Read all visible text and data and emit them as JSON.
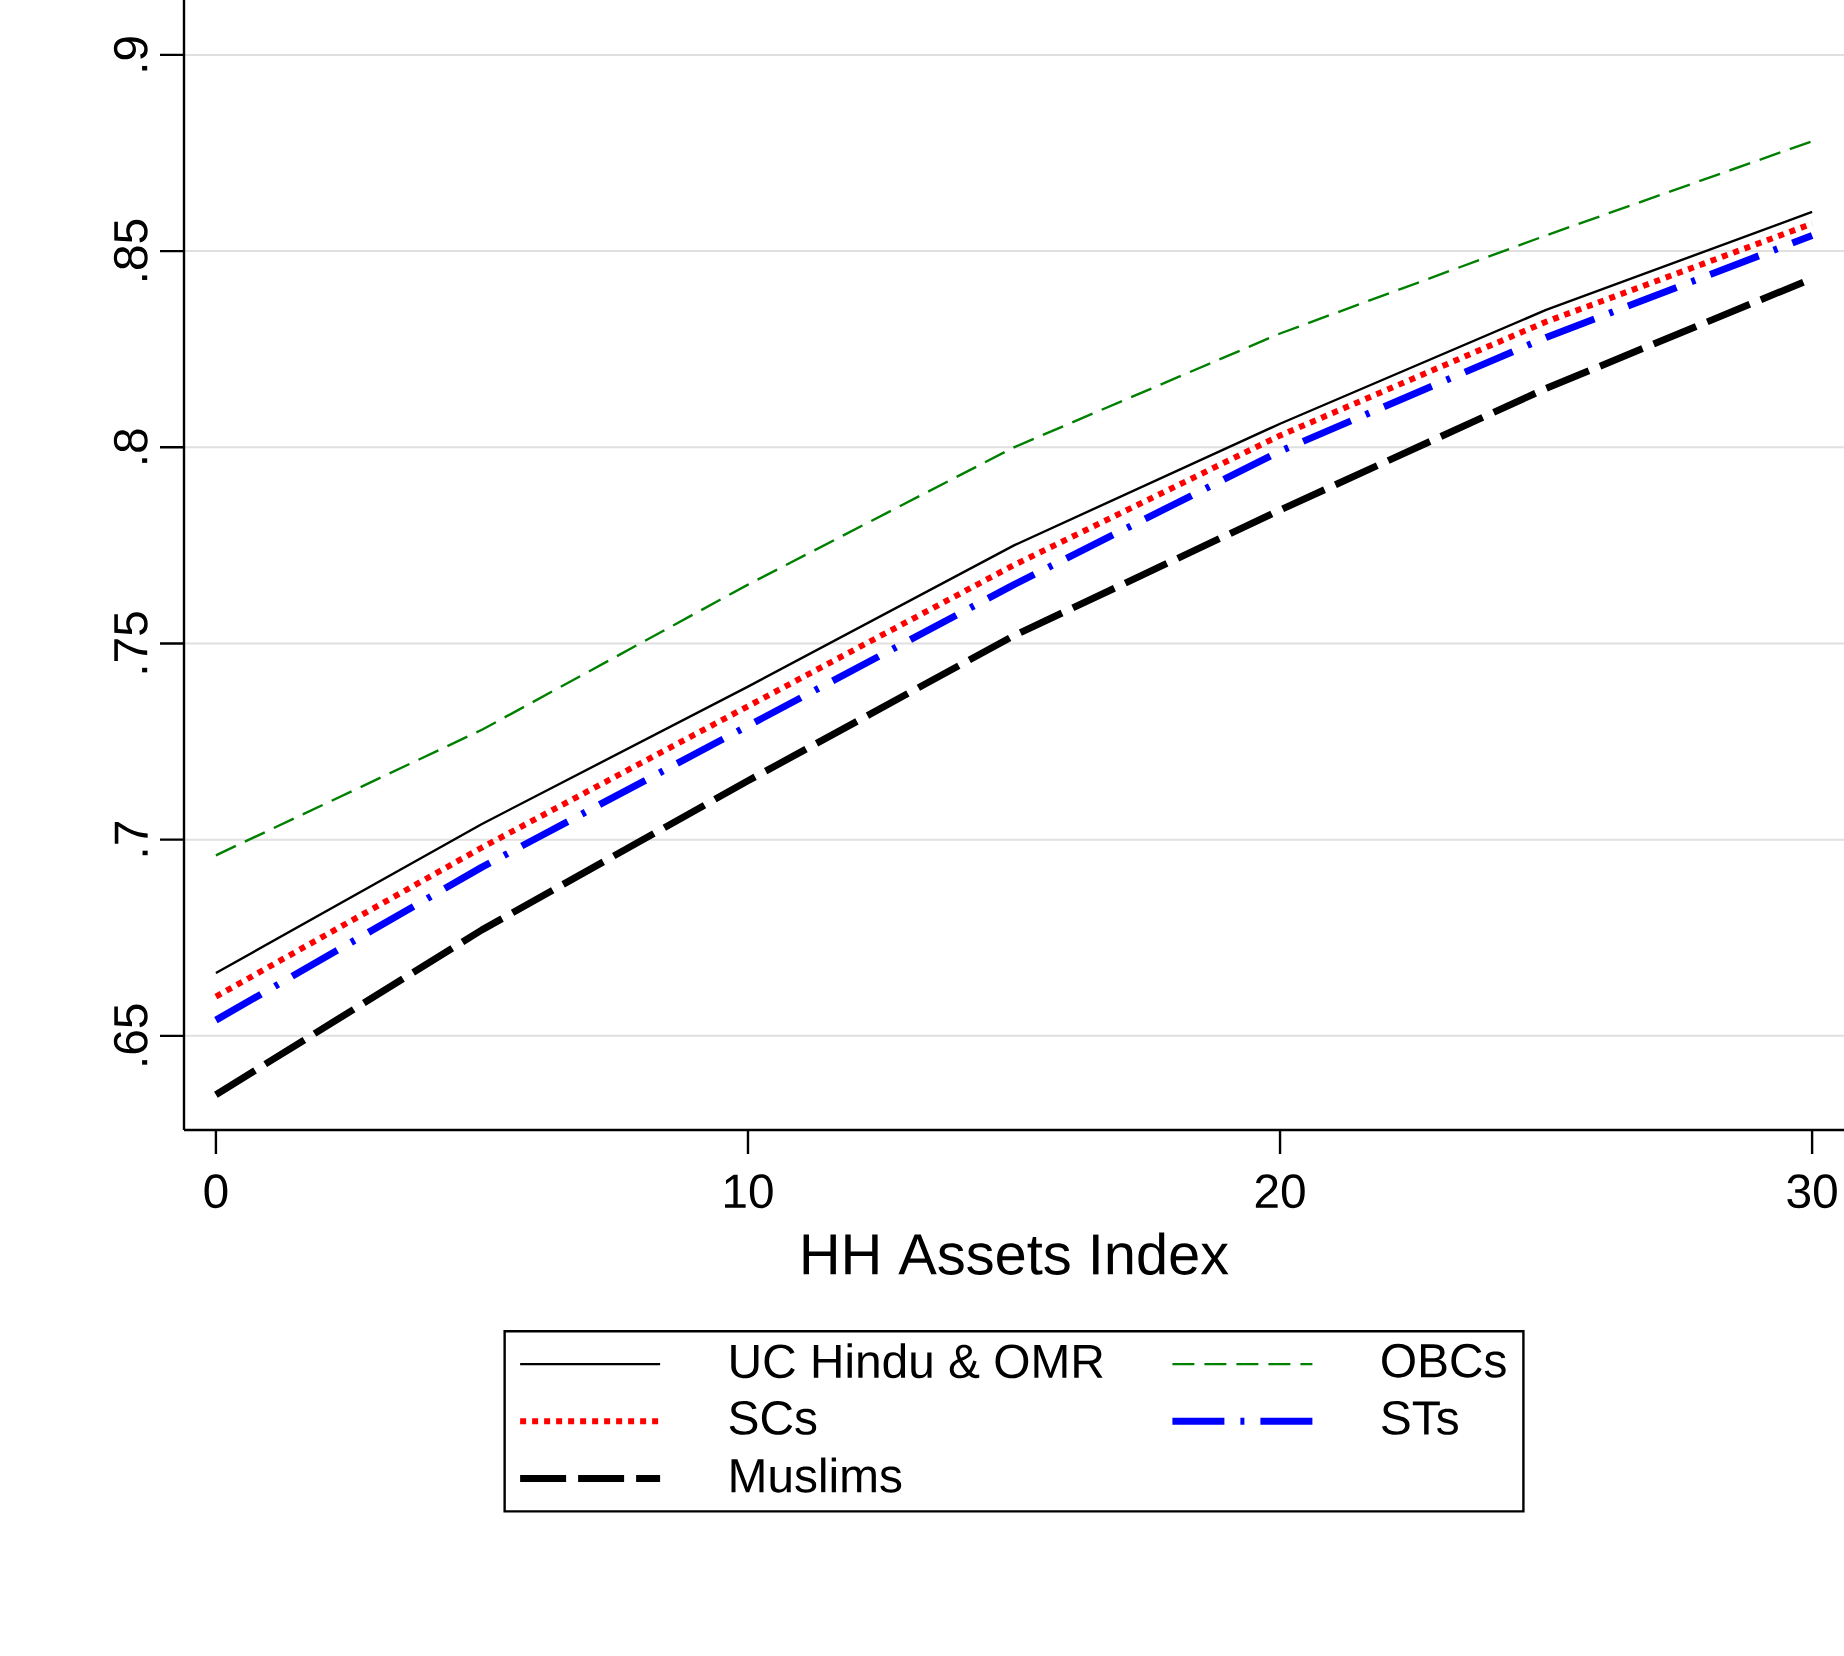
{
  "chart_data": {
    "type": "line",
    "xlabel": "HH Assets Index",
    "x": [
      0,
      5,
      10,
      15,
      20,
      25,
      30
    ],
    "xlim": [
      -0.6,
      30.6
    ],
    "xticks": [
      0,
      10,
      20,
      30
    ],
    "ylim": [
      0.626,
      0.914
    ],
    "yticks": [
      {
        "value": 0.65,
        "label": ".65"
      },
      {
        "value": 0.7,
        "label": ".7"
      },
      {
        "value": 0.75,
        "label": ".75"
      },
      {
        "value": 0.8,
        "label": ".8"
      },
      {
        "value": 0.85,
        "label": ".85"
      },
      {
        "value": 0.9,
        "label": ".9"
      }
    ],
    "grid": "y",
    "legend": "bottom",
    "marker": "none",
    "series": [
      {
        "name": "UC Hindu & OMR",
        "color": "#000000",
        "line_style": "solid",
        "values": [
          0.666,
          0.704,
          0.739,
          0.775,
          0.806,
          0.835,
          0.86
        ]
      },
      {
        "name": "OBCs",
        "color": "#008000",
        "line_style": "dashed",
        "values": [
          0.696,
          0.728,
          0.765,
          0.8,
          0.829,
          0.854,
          0.878
        ]
      },
      {
        "name": "SCs",
        "color": "#ff0000",
        "line_style": "dotted",
        "values": [
          0.66,
          0.698,
          0.734,
          0.77,
          0.803,
          0.832,
          0.857
        ]
      },
      {
        "name": "STs",
        "color": "#0000ff",
        "line_style": "dashdot",
        "values": [
          0.654,
          0.693,
          0.729,
          0.765,
          0.799,
          0.828,
          0.854
        ]
      },
      {
        "name": "Muslims",
        "color": "#000000",
        "line_style": "dashed",
        "values": [
          0.635,
          0.677,
          0.715,
          0.752,
          0.784,
          0.815,
          0.843
        ]
      }
    ]
  }
}
